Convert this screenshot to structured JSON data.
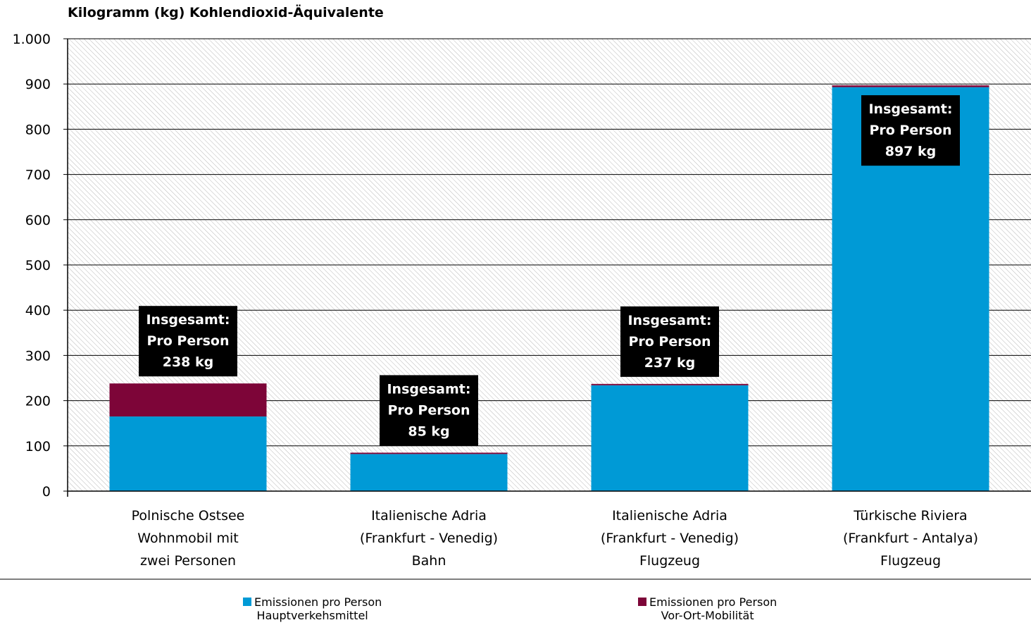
{
  "chart_data": {
    "type": "bar",
    "stacked": true,
    "title": "",
    "ylabel": "Kilogramm (kg) Kohlendioxid-Äquivalente",
    "xlabel": "",
    "ylim": [
      0,
      1000
    ],
    "yticks": [
      0,
      100,
      200,
      300,
      400,
      500,
      600,
      700,
      800,
      900,
      1000
    ],
    "ytick_labels": [
      "0",
      "100",
      "200",
      "300",
      "400",
      "500",
      "600",
      "700",
      "800",
      "900",
      "1.000"
    ],
    "grid": true,
    "legend_position": "bottom",
    "categories": [
      [
        "Polnische Ostsee",
        "Wohnmobil mit",
        "zwei Personen"
      ],
      [
        "Italienische Adria",
        "(Frankfurt - Venedig)",
        "Bahn"
      ],
      [
        "Italienische Adria",
        "(Frankfurt - Venedig)",
        "Flugzeug"
      ],
      [
        "Türkische Riviera",
        "(Frankfurt - Antalya)",
        "Flugzeug"
      ]
    ],
    "series": [
      {
        "name": "Emissionen pro Person Hauptverkehsmittel",
        "legend_lines": [
          "Emissionen pro Person",
          "Hauptverkehsmittel"
        ],
        "color": "#009ad6",
        "values": [
          165,
          82,
          234,
          893
        ]
      },
      {
        "name": "Emissionen pro Person Vor-Ort-Mobilität",
        "legend_lines": [
          "Emissionen pro Person",
          "Vor-Ort-Mobilität"
        ],
        "color": "#7d0538",
        "values": [
          73,
          3,
          3,
          4
        ]
      }
    ],
    "annotations": [
      [
        "Insgesamt:",
        "Pro Person",
        "238 kg"
      ],
      [
        "Insgesamt:",
        "Pro Person",
        "85 kg"
      ],
      [
        "Insgesamt:",
        "Pro Person",
        "237 kg"
      ],
      [
        "Insgesamt:",
        "Pro Person",
        "897 kg"
      ]
    ],
    "annotation_placement": [
      "above",
      "above",
      "above",
      "inside"
    ]
  }
}
